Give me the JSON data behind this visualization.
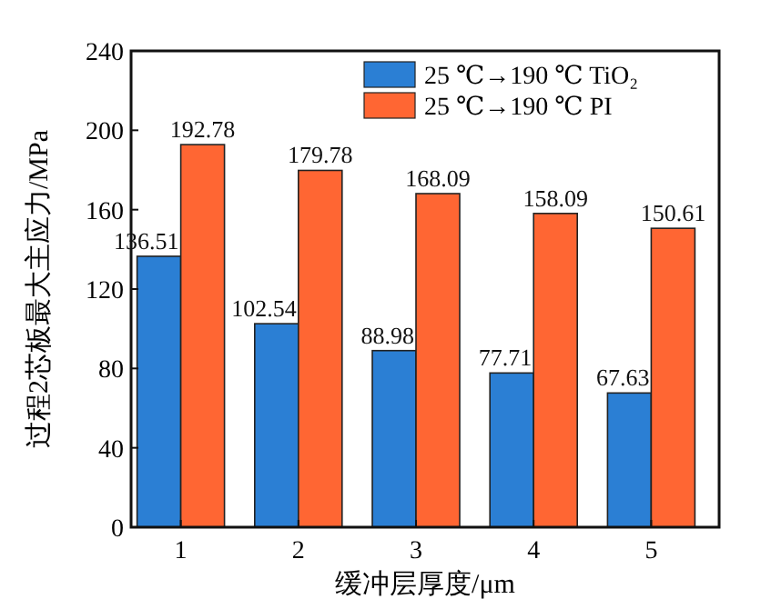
{
  "chart_data": {
    "type": "bar",
    "xlabel": "缓冲层厚度/μm",
    "ylabel": "过程2芯板最大主应力/MPa",
    "categories": [
      "1",
      "2",
      "3",
      "4",
      "5"
    ],
    "series": [
      {
        "name": "25 ℃→190 ℃ TiO₂",
        "color": "#2b7fd4",
        "values": [
          136.51,
          102.54,
          88.98,
          77.71,
          67.63
        ]
      },
      {
        "name": "25 ℃→190 ℃ PI",
        "color": "#ff6633",
        "values": [
          192.78,
          179.78,
          168.09,
          158.09,
          150.61
        ]
      }
    ],
    "ylim": [
      0,
      240
    ],
    "yticks": [
      0,
      40,
      80,
      120,
      160,
      200,
      240
    ],
    "data_labels": true,
    "legend": "top right",
    "grid": false
  }
}
